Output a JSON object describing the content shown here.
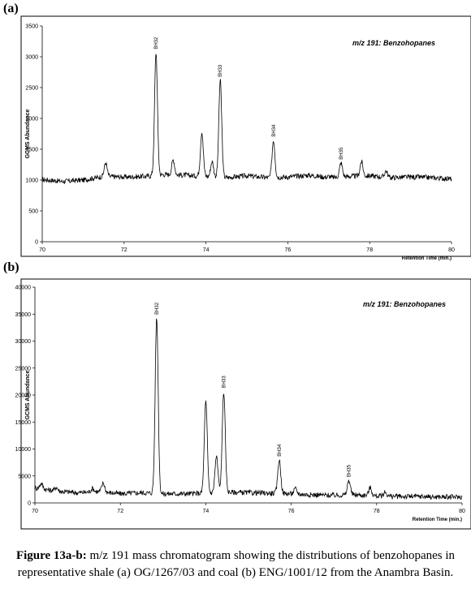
{
  "panels": [
    {
      "letter": "(a)"
    },
    {
      "letter": "(b)"
    }
  ],
  "chart_data": [
    {
      "type": "line",
      "title": "m/z 191: Benzohopanes",
      "xlabel": "Retention Time (min.)",
      "ylabel": "GCMS Abundance",
      "xlim": [
        70,
        80
      ],
      "ylim": [
        0,
        3500
      ],
      "xticks": [
        70,
        72,
        74,
        76,
        78,
        80
      ],
      "yticks": [
        0,
        500,
        1000,
        1500,
        2000,
        2500,
        3000,
        3500
      ],
      "grid": false,
      "baseline": [
        [
          70,
          1010
        ],
        [
          70.5,
          980
        ],
        [
          71,
          1000
        ],
        [
          71.5,
          1060
        ],
        [
          72,
          1050
        ],
        [
          72.5,
          1060
        ],
        [
          73,
          1090
        ],
        [
          73.5,
          1080
        ],
        [
          74,
          1060
        ],
        [
          74.5,
          1040
        ],
        [
          75,
          1070
        ],
        [
          75.5,
          1040
        ],
        [
          76,
          1050
        ],
        [
          76.5,
          1080
        ],
        [
          77,
          1040
        ],
        [
          77.5,
          1060
        ],
        [
          78,
          1070
        ],
        [
          78.5,
          1040
        ],
        [
          79,
          1050
        ],
        [
          79.5,
          1040
        ],
        [
          80,
          1020
        ]
      ],
      "peaks": [
        [
          71.55,
          1280
        ],
        [
          72.78,
          3070
        ],
        [
          73.2,
          1330
        ],
        [
          73.9,
          1780
        ],
        [
          74.15,
          1300
        ],
        [
          74.35,
          2620
        ],
        [
          75.65,
          1650
        ],
        [
          77.0,
          1060
        ],
        [
          77.3,
          1280
        ],
        [
          77.8,
          1300
        ],
        [
          78.4,
          1150
        ]
      ],
      "peak_labels": [
        {
          "x": 72.78,
          "y": 3070,
          "label": "BH32"
        },
        {
          "x": 74.35,
          "y": 2620,
          "label": "BH33"
        },
        {
          "x": 75.65,
          "y": 1650,
          "label": "BH34"
        },
        {
          "x": 77.3,
          "y": 1280,
          "label": "BH35"
        }
      ]
    },
    {
      "type": "line",
      "title": "m/z 191: Benzohopanes",
      "xlabel": "Retention Time (min.)",
      "ylabel": "GCMS Abundance",
      "xlim": [
        70,
        80
      ],
      "ylim": [
        0,
        40000
      ],
      "xticks": [
        70,
        72,
        74,
        76,
        78,
        80
      ],
      "yticks": [
        0,
        5000,
        10000,
        15000,
        20000,
        25000,
        30000,
        35000,
        40000
      ],
      "grid": false,
      "baseline": [
        [
          70,
          2800
        ],
        [
          70.5,
          2200
        ],
        [
          71,
          1900
        ],
        [
          71.5,
          2100
        ],
        [
          72,
          1700
        ],
        [
          72.5,
          1900
        ],
        [
          73,
          1700
        ],
        [
          73.5,
          1700
        ],
        [
          74,
          1800
        ],
        [
          74.5,
          2000
        ],
        [
          75,
          1900
        ],
        [
          75.5,
          1800
        ],
        [
          76,
          1700
        ],
        [
          76.5,
          1500
        ],
        [
          77,
          1400
        ],
        [
          77.5,
          1500
        ],
        [
          78,
          1300
        ],
        [
          78.5,
          1200
        ],
        [
          79,
          1200
        ],
        [
          79.5,
          1100
        ],
        [
          80,
          1100
        ]
      ],
      "peaks": [
        [
          70.15,
          3600
        ],
        [
          70.5,
          2900
        ],
        [
          71.35,
          2700
        ],
        [
          71.6,
          3700
        ],
        [
          72.85,
          34300
        ],
        [
          74.0,
          18700
        ],
        [
          74.25,
          8600
        ],
        [
          74.42,
          20700
        ],
        [
          75.72,
          8000
        ],
        [
          76.1,
          2600
        ],
        [
          77.35,
          4200
        ],
        [
          77.85,
          2800
        ],
        [
          78.2,
          2000
        ]
      ],
      "peak_labels": [
        {
          "x": 72.85,
          "y": 34300,
          "label": "BH32"
        },
        {
          "x": 74.42,
          "y": 20700,
          "label": "BH33"
        },
        {
          "x": 75.72,
          "y": 8000,
          "label": "BH34"
        },
        {
          "x": 77.35,
          "y": 4200,
          "label": "BH35"
        }
      ]
    }
  ],
  "caption": {
    "bold": "Figure 13a-b:",
    "text": " m/z 191 mass chromatogram showing the distributions of benzohopanes in representative shale (a) OG/1267/03 and coal (b) ENG/1001/12 from the Anambra Basin."
  }
}
